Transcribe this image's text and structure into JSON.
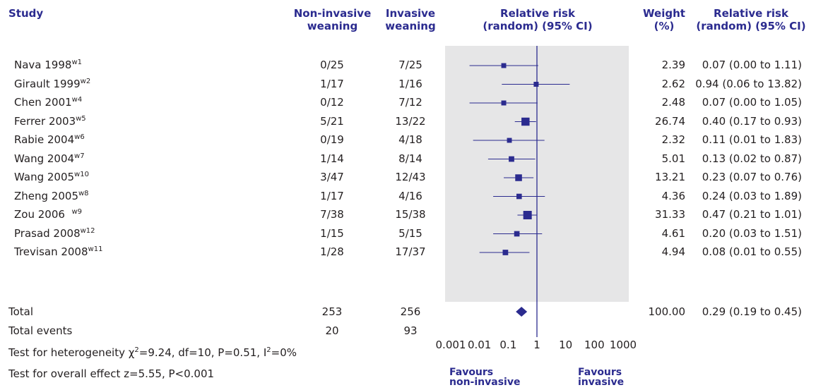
{
  "headers": {
    "study": "Study",
    "noninvasive": [
      "Non-invasive",
      "weaning"
    ],
    "invasive": [
      "Invasive",
      "weaning"
    ],
    "rr_plot": [
      "Relative risk",
      "(random) (95% CI)"
    ],
    "weight": [
      "Weight",
      "(%)"
    ],
    "rr_text": [
      "Relative risk",
      "(random) (95% CI)"
    ]
  },
  "summary": {
    "total_label": "Total",
    "total_noninvasive": "253",
    "total_invasive": "256",
    "total_weight": "100.00",
    "total_ci_text": "0.29 (0.19 to 0.45)",
    "events_label": "Total events",
    "events_noninvasive": "20",
    "events_invasive": "93",
    "heterogeneity_prefix": "Test for heterogeneity χ",
    "heterogeneity_sup1": "2",
    "heterogeneity_mid": "=9.24, df=10, P=0.51, I",
    "heterogeneity_sup2": "2",
    "heterogeneity_suffix": "=0%",
    "overall_effect": "Test for overall effect z=5.55, P<0.001"
  },
  "favours": {
    "left": [
      "Favours",
      "non-invasive"
    ],
    "right": [
      "Favours",
      "invasive"
    ]
  },
  "colors": {
    "header": "#2b2b8f",
    "marker": "#2b2b8f",
    "panel": "#e6e6e7",
    "text": "#231f20"
  },
  "chart_data": {
    "type": "forest",
    "xscale": "log",
    "xlim": [
      0.001,
      1000
    ],
    "ticks": [
      0.001,
      0.01,
      0.1,
      1,
      10,
      100,
      1000
    ],
    "tick_labels": [
      "0.001",
      "0.01",
      "0.1",
      "1",
      "10",
      "100",
      "1000"
    ],
    "null_line": 1,
    "studies": [
      {
        "name": "Nava 1998",
        "ref": "w1",
        "noninvasive": "0/25",
        "invasive": "7/25",
        "weight": "2.39",
        "ci_text": "0.07 (0.00 to 1.11)",
        "rr": 0.07,
        "lo": 0.0045,
        "hi": 1.11
      },
      {
        "name": "Girault 1999",
        "ref": "w2",
        "noninvasive": "1/17",
        "invasive": "1/16",
        "weight": "2.62",
        "ci_text": "0.94 (0.06 to 13.82)",
        "rr": 0.94,
        "lo": 0.06,
        "hi": 13.82
      },
      {
        "name": "Chen 2001",
        "ref": "w4",
        "noninvasive": "0/12",
        "invasive": "7/12",
        "weight": "2.48",
        "ci_text": "0.07 (0.00 to 1.05)",
        "rr": 0.07,
        "lo": 0.0045,
        "hi": 1.05
      },
      {
        "name": "Ferrer 2003",
        "ref": "w5",
        "noninvasive": "5/21",
        "invasive": "13/22",
        "weight": "26.74",
        "ci_text": "0.40 (0.17 to 0.93)",
        "rr": 0.4,
        "lo": 0.17,
        "hi": 0.93
      },
      {
        "name": "Rabie 2004",
        "ref": "w6",
        "noninvasive": "0/19",
        "invasive": "4/18",
        "weight": "2.32",
        "ci_text": "0.11 (0.01 to 1.83)",
        "rr": 0.11,
        "lo": 0.006,
        "hi": 1.83
      },
      {
        "name": "Wang 2004",
        "ref": "w7",
        "noninvasive": "1/14",
        "invasive": "8/14",
        "weight": "5.01",
        "ci_text": "0.13 (0.02 to 0.87)",
        "rr": 0.13,
        "lo": 0.02,
        "hi": 0.87
      },
      {
        "name": "Wang 2005",
        "ref": "w10",
        "noninvasive": "3/47",
        "invasive": "12/43",
        "weight": "13.21",
        "ci_text": "0.23 (0.07 to 0.76)",
        "rr": 0.23,
        "lo": 0.07,
        "hi": 0.76
      },
      {
        "name": "Zheng 2005",
        "ref": "w8",
        "noninvasive": "1/17",
        "invasive": "4/16",
        "weight": "4.36",
        "ci_text": "0.24 (0.03 to 1.89)",
        "rr": 0.24,
        "lo": 0.03,
        "hi": 1.89
      },
      {
        "name": "Zou 2006  ",
        "ref": "w9",
        "noninvasive": "7/38",
        "invasive": "15/38",
        "weight": "31.33",
        "ci_text": "0.47 (0.21 to 1.01)",
        "rr": 0.47,
        "lo": 0.21,
        "hi": 1.01
      },
      {
        "name": "Prasad 2008",
        "ref": "w12",
        "noninvasive": "1/15",
        "invasive": "5/15",
        "weight": "4.61",
        "ci_text": "0.20 (0.03 to 1.51)",
        "rr": 0.2,
        "lo": 0.03,
        "hi": 1.51
      },
      {
        "name": "Trevisan 2008",
        "ref": "w11",
        "noninvasive": "1/28",
        "invasive": "17/37",
        "weight": "4.94",
        "ci_text": "0.08 (0.01 to 0.55)",
        "rr": 0.08,
        "lo": 0.01,
        "hi": 0.55
      }
    ],
    "pooled": {
      "rr": 0.29,
      "lo": 0.19,
      "hi": 0.45
    }
  }
}
